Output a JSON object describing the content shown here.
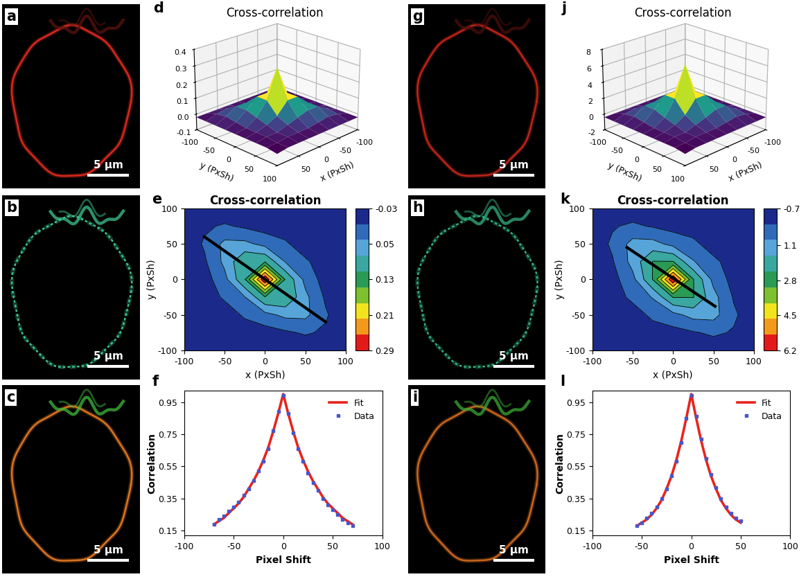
{
  "chart_data": [
    {
      "panel_label": "a",
      "type": "image",
      "colors": [
        "#d8281c",
        "#5a1410"
      ],
      "scale_bar": "5 µm"
    },
    {
      "panel_label": "b",
      "type": "image",
      "colors": [
        "#3cc48e",
        "#3cc48e"
      ],
      "line_style": "dotted",
      "scale_bar": "5 µm"
    },
    {
      "panel_label": "c",
      "type": "image",
      "colors": [
        "#da7420",
        "#3fb83a"
      ],
      "scale_bar": "5 µm"
    },
    {
      "panel_label": "d",
      "type": "surface",
      "title": "Cross-correlation",
      "x_label": "x (PxSh)",
      "y_label": "y (PxSh)",
      "x": [
        -100,
        -75,
        -50,
        -25,
        0,
        25,
        50,
        75,
        100
      ],
      "y": [
        -100,
        -75,
        -50,
        -25,
        0,
        25,
        50,
        75,
        100
      ],
      "z": [
        [
          -0.03,
          -0.02,
          -0.02,
          -0.02,
          -0.02,
          -0.02,
          -0.02,
          -0.02,
          -0.02
        ],
        [
          -0.02,
          -0.02,
          -0.01,
          -0.01,
          -0.01,
          0.0,
          0.01,
          0.0,
          -0.02
        ],
        [
          -0.02,
          -0.01,
          -0.01,
          0.01,
          0.03,
          0.05,
          0.05,
          0.01,
          -0.02
        ],
        [
          -0.02,
          -0.01,
          0.01,
          0.04,
          0.11,
          0.11,
          0.05,
          0.0,
          -0.02
        ],
        [
          -0.02,
          -0.01,
          0.03,
          0.11,
          0.29,
          0.11,
          0.03,
          -0.01,
          -0.02
        ],
        [
          -0.02,
          0.0,
          0.05,
          0.11,
          0.11,
          0.04,
          0.01,
          -0.01,
          -0.02
        ],
        [
          -0.02,
          0.01,
          0.05,
          0.05,
          0.03,
          0.01,
          -0.01,
          -0.01,
          -0.02
        ],
        [
          -0.02,
          0.0,
          0.01,
          0.0,
          -0.01,
          -0.01,
          -0.01,
          -0.02,
          -0.02
        ],
        [
          -0.02,
          -0.02,
          -0.02,
          -0.02,
          -0.02,
          -0.02,
          -0.02,
          -0.02,
          -0.03
        ]
      ],
      "xlim": [
        -100,
        100
      ],
      "xticks": [
        -100,
        -50,
        0,
        50
      ],
      "ylim": [
        -100,
        100
      ],
      "yticks": [
        -100,
        -50,
        0,
        50,
        100
      ],
      "zlim": [
        -0.1,
        0.4
      ],
      "zticks": [
        -0.1,
        {
          "value": 0,
          "label": "0.0"
        },
        0.1,
        0.2,
        0.3,
        0.4
      ]
    },
    {
      "panel_label": "e",
      "type": "contour",
      "title": "Cross-correlation",
      "x_label": "x (PxSh)",
      "y_label": "y (PxSh)",
      "x": [
        -100,
        -75,
        -50,
        -25,
        0,
        25,
        50,
        75,
        100
      ],
      "y": [
        -100,
        -75,
        -50,
        -25,
        0,
        25,
        50,
        75,
        100
      ],
      "z": [
        [
          -0.03,
          -0.02,
          -0.02,
          -0.02,
          -0.02,
          -0.02,
          -0.02,
          -0.02,
          -0.02
        ],
        [
          -0.02,
          -0.02,
          -0.01,
          -0.01,
          -0.01,
          0.0,
          0.01,
          0.0,
          -0.02
        ],
        [
          -0.02,
          -0.01,
          -0.01,
          0.01,
          0.03,
          0.05,
          0.05,
          0.01,
          -0.02
        ],
        [
          -0.02,
          -0.01,
          0.01,
          0.04,
          0.11,
          0.11,
          0.05,
          0.0,
          -0.02
        ],
        [
          -0.02,
          -0.01,
          0.03,
          0.11,
          0.29,
          0.11,
          0.03,
          -0.01,
          -0.02
        ],
        [
          -0.02,
          0.0,
          0.05,
          0.11,
          0.11,
          0.04,
          0.01,
          -0.01,
          -0.02
        ],
        [
          -0.02,
          0.01,
          0.05,
          0.05,
          0.03,
          0.01,
          -0.01,
          -0.01,
          -0.02
        ],
        [
          -0.02,
          0.0,
          0.01,
          0.0,
          -0.01,
          -0.01,
          -0.01,
          -0.02,
          -0.02
        ],
        [
          -0.02,
          -0.02,
          -0.02,
          -0.02,
          -0.02,
          -0.02,
          -0.02,
          -0.02,
          -0.03
        ]
      ],
      "colorbar_range": [
        -0.03,
        0.29
      ],
      "colorbar_ticks": [
        -0.03,
        0.05,
        0.13,
        0.21,
        0.29
      ],
      "profile_line": {
        "x": [
          -75,
          75
        ],
        "y": [
          60,
          -60
        ]
      },
      "xlim": [
        -100,
        100
      ],
      "xticks": [
        -100,
        -50,
        0,
        50,
        100
      ],
      "ylim": [
        -100,
        100
      ],
      "yticks": [
        -100,
        -50,
        0,
        50,
        100
      ]
    },
    {
      "panel_label": "f",
      "type": "line",
      "x_label": "Pixel Shift",
      "y_label": "Correlation",
      "legend": "upper right",
      "x": [
        -70,
        -65,
        -60,
        -55,
        -50,
        -45,
        -40,
        -35,
        -30,
        -25,
        -20,
        -15,
        -10,
        -5,
        0,
        5,
        10,
        15,
        20,
        25,
        30,
        35,
        40,
        45,
        50,
        55,
        60,
        65,
        70
      ],
      "series": [
        {
          "name": "Fit",
          "color": "#e8231c",
          "line_style": "solid",
          "values": [
            0.19,
            0.21,
            0.23,
            0.26,
            0.29,
            0.32,
            0.36,
            0.41,
            0.46,
            0.52,
            0.59,
            0.67,
            0.77,
            0.88,
            1.0,
            0.88,
            0.77,
            0.67,
            0.59,
            0.52,
            0.46,
            0.41,
            0.36,
            0.32,
            0.29,
            0.26,
            0.23,
            0.21,
            0.19
          ]
        },
        {
          "name": "Data",
          "color": "#4a55c8",
          "marker": "square",
          "line_style": "none",
          "values": [
            0.19,
            0.22,
            0.24,
            0.27,
            0.3,
            0.33,
            0.37,
            0.41,
            0.46,
            0.52,
            0.58,
            0.66,
            0.77,
            0.89,
            0.99,
            0.88,
            0.76,
            0.66,
            0.58,
            0.51,
            0.45,
            0.4,
            0.35,
            0.31,
            0.28,
            0.25,
            0.22,
            0.2,
            0.18
          ]
        }
      ],
      "xlim": [
        -100,
        100
      ],
      "xticks": [
        -100,
        -50,
        0,
        50,
        100
      ],
      "ylim": [
        0.12,
        1.02
      ],
      "yticks": [
        0.15,
        0.35,
        0.55,
        0.75,
        0.95
      ]
    },
    {
      "panel_label": "g",
      "type": "image",
      "colors": [
        "#bc2418",
        "#4a100c"
      ],
      "scale_bar": "5 µm"
    },
    {
      "panel_label": "h",
      "type": "image",
      "colors": [
        "#35b080",
        "#35b080"
      ],
      "line_style": "dotted",
      "scale_bar": "5 µm"
    },
    {
      "panel_label": "i",
      "type": "image",
      "colors": [
        "#c8661c",
        "#3aa836"
      ],
      "scale_bar": "5 µm"
    },
    {
      "panel_label": "j",
      "type": "surface",
      "title": "Cross-correlation",
      "x_label": "x (PxSh)",
      "y_label": "y (PxSh)",
      "x": [
        -100,
        -75,
        -50,
        -25,
        0,
        25,
        50,
        75,
        100
      ],
      "y": [
        -100,
        -75,
        -50,
        -25,
        0,
        25,
        50,
        75,
        100
      ],
      "z": [
        [
          -0.6,
          -0.4,
          -0.4,
          -0.4,
          -0.4,
          -0.4,
          -0.4,
          -0.4,
          -0.4
        ],
        [
          -0.4,
          -0.4,
          -0.2,
          -0.2,
          -0.2,
          0.0,
          0.2,
          0.0,
          -0.4
        ],
        [
          -0.4,
          -0.2,
          -0.2,
          0.2,
          0.6,
          1.1,
          1.1,
          0.2,
          -0.4
        ],
        [
          -0.4,
          -0.2,
          0.2,
          0.9,
          2.4,
          2.4,
          1.1,
          0.0,
          -0.4
        ],
        [
          -0.4,
          -0.2,
          0.6,
          2.4,
          6.2,
          2.4,
          0.6,
          -0.2,
          -0.4
        ],
        [
          -0.4,
          0.0,
          1.1,
          2.4,
          2.4,
          0.9,
          0.2,
          -0.2,
          -0.4
        ],
        [
          -0.4,
          0.2,
          1.1,
          1.1,
          0.6,
          0.2,
          -0.2,
          -0.2,
          -0.4
        ],
        [
          -0.4,
          0.0,
          0.2,
          0.0,
          -0.2,
          -0.2,
          -0.2,
          -0.4,
          -0.4
        ],
        [
          -0.4,
          -0.4,
          -0.4,
          -0.4,
          -0.4,
          -0.4,
          -0.4,
          -0.4,
          -0.6
        ]
      ],
      "xlim": [
        -100,
        100
      ],
      "xticks": [
        -100,
        -50,
        0,
        50
      ],
      "ylim": [
        -100,
        100
      ],
      "yticks": [
        -100,
        -50,
        0,
        50,
        100
      ],
      "zlim": [
        -2,
        8
      ],
      "zticks": [
        -2,
        0,
        2,
        4,
        6,
        8
      ]
    },
    {
      "panel_label": "k",
      "type": "contour",
      "title": "Cross-correlation",
      "x_label": "x (PxSh)",
      "y_label": "y (PxSh)",
      "x": [
        -100,
        -75,
        -50,
        -25,
        0,
        25,
        50,
        75,
        100
      ],
      "y": [
        -100,
        -75,
        -50,
        -25,
        0,
        25,
        50,
        75,
        100
      ],
      "z": [
        [
          -0.6,
          -0.4,
          -0.4,
          -0.4,
          -0.4,
          -0.4,
          -0.4,
          -0.4,
          -0.4
        ],
        [
          -0.4,
          -0.4,
          -0.2,
          -0.2,
          -0.2,
          0.0,
          0.2,
          0.0,
          -0.4
        ],
        [
          -0.4,
          -0.2,
          -0.2,
          0.2,
          0.6,
          1.1,
          1.1,
          0.2,
          -0.4
        ],
        [
          -0.4,
          -0.2,
          0.2,
          0.9,
          2.4,
          2.4,
          1.1,
          0.0,
          -0.4
        ],
        [
          -0.4,
          -0.2,
          0.6,
          2.4,
          6.2,
          2.4,
          0.6,
          -0.2,
          -0.4
        ],
        [
          -0.4,
          0.0,
          1.1,
          2.4,
          2.4,
          0.9,
          0.2,
          -0.2,
          -0.4
        ],
        [
          -0.4,
          0.2,
          1.1,
          1.1,
          0.6,
          0.2,
          -0.2,
          -0.2,
          -0.4
        ],
        [
          -0.4,
          0.0,
          0.2,
          0.0,
          -0.2,
          -0.2,
          -0.2,
          -0.4,
          -0.4
        ],
        [
          -0.4,
          -0.4,
          -0.4,
          -0.4,
          -0.4,
          -0.4,
          -0.4,
          -0.4,
          -0.6
        ]
      ],
      "colorbar_range": [
        -0.7,
        6.2
      ],
      "colorbar_ticks": [
        -0.7,
        1.1,
        2.8,
        4.5,
        6.2
      ],
      "profile_line": {
        "x": [
          -57,
          52
        ],
        "y": [
          45,
          -38
        ]
      },
      "xlim": [
        -100,
        100
      ],
      "xticks": [
        -100,
        -50,
        0,
        50,
        100
      ],
      "ylim": [
        -100,
        100
      ],
      "yticks": [
        -100,
        -50,
        0,
        50,
        100
      ]
    },
    {
      "panel_label": "l",
      "type": "line",
      "x_label": "Pixel Shift",
      "y_label": "Correlation",
      "legend": "upper right",
      "x": [
        -55,
        -50,
        -45,
        -40,
        -35,
        -30,
        -25,
        -20,
        -15,
        -10,
        -5,
        0,
        5,
        10,
        15,
        20,
        25,
        30,
        35,
        40,
        45,
        50
      ],
      "series": [
        {
          "name": "Fit",
          "color": "#e8231c",
          "line_style": "solid",
          "values": [
            0.18,
            0.2,
            0.22,
            0.25,
            0.29,
            0.34,
            0.41,
            0.49,
            0.59,
            0.71,
            0.85,
            1.0,
            0.85,
            0.71,
            0.59,
            0.49,
            0.41,
            0.34,
            0.29,
            0.25,
            0.22,
            0.2
          ]
        },
        {
          "name": "Data",
          "color": "#4a55c8",
          "marker": "square",
          "line_style": "none",
          "values": [
            0.18,
            0.2,
            0.23,
            0.26,
            0.3,
            0.35,
            0.41,
            0.49,
            0.58,
            0.7,
            0.85,
            0.99,
            0.86,
            0.72,
            0.6,
            0.5,
            0.42,
            0.35,
            0.3,
            0.26,
            0.23,
            0.21
          ]
        }
      ],
      "xlim": [
        -100,
        100
      ],
      "xticks": [
        -100,
        -50,
        0,
        50,
        100
      ],
      "ylim": [
        0.12,
        1.02
      ],
      "yticks": [
        0.15,
        0.35,
        0.55,
        0.75,
        0.95
      ]
    }
  ]
}
